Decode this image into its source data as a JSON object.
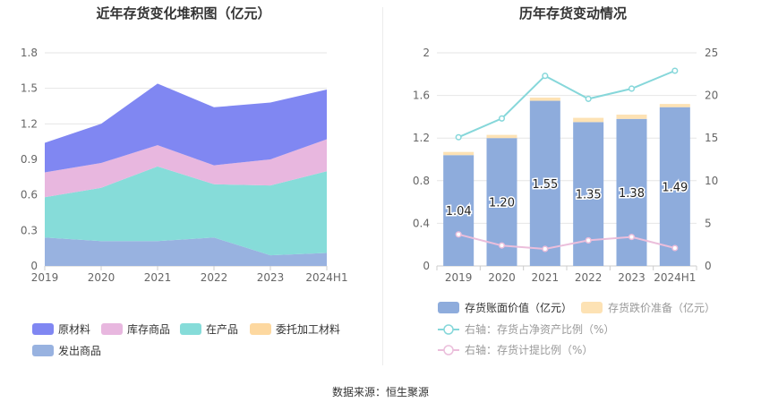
{
  "source_text": "数据来源：恒生聚源",
  "chart_data": [
    {
      "type": "area",
      "stacked": true,
      "title": "近年存货变化堆积图（亿元）",
      "categories": [
        "2019",
        "2020",
        "2021",
        "2022",
        "2023",
        "2024H1"
      ],
      "ylim": [
        0,
        1.8
      ],
      "yticks": [
        "0",
        "0.3",
        "0.6",
        "0.9",
        "1.2",
        "1.5",
        "1.8"
      ],
      "grid": true,
      "legend_position": "bottom-left",
      "series": [
        {
          "name": "原材料",
          "color": "#8087f2",
          "values": [
            0.25,
            0.33,
            0.52,
            0.49,
            0.48,
            0.42
          ]
        },
        {
          "name": "库存商品",
          "color": "#e8b7df",
          "values": [
            0.21,
            0.21,
            0.18,
            0.16,
            0.22,
            0.27
          ]
        },
        {
          "name": "在产品",
          "color": "#86dcd9",
          "values": [
            0.34,
            0.45,
            0.63,
            0.45,
            0.59,
            0.69
          ]
        },
        {
          "name": "委托加工材料",
          "color": "#fdd8a0",
          "values": [
            0.0,
            0.0,
            0.0,
            0.0,
            0.0,
            0.0
          ]
        },
        {
          "name": "发出商品",
          "color": "#98b2e0",
          "values": [
            0.24,
            0.21,
            0.21,
            0.24,
            0.09,
            0.11
          ]
        }
      ]
    },
    {
      "type": "bar",
      "title": "历年存货变动情况",
      "categories": [
        "2019",
        "2020",
        "2021",
        "2022",
        "2023",
        "2024H1"
      ],
      "ylim": [
        0,
        2
      ],
      "yticks": [
        "0",
        "0.4",
        "0.8",
        "1.2",
        "1.6",
        "2"
      ],
      "y2lim": [
        0,
        25
      ],
      "y2ticks": [
        "0",
        "5",
        "10",
        "15",
        "20",
        "25"
      ],
      "grid": true,
      "legend_position": "bottom-left",
      "series": [
        {
          "name": "存货账面价值（亿元）",
          "kind": "bar",
          "axis": "left",
          "color": "#8eacdc",
          "values": [
            1.04,
            1.2,
            1.55,
            1.35,
            1.38,
            1.49
          ],
          "labels": [
            "1.04",
            "1.20",
            "1.55",
            "1.35",
            "1.38",
            "1.49"
          ]
        },
        {
          "name": "存货跌价准备（亿元）",
          "kind": "bar",
          "axis": "left",
          "color": "#fde2b4",
          "values": [
            0.03,
            0.03,
            0.03,
            0.04,
            0.04,
            0.03
          ]
        },
        {
          "name": "右轴：存货占净资产比例（%）",
          "kind": "line",
          "axis": "right",
          "color": "#86d7da",
          "values": [
            15.1,
            17.3,
            22.3,
            19.6,
            20.8,
            22.9
          ]
        },
        {
          "name": "右轴：存货计提比例（%）",
          "kind": "line",
          "axis": "right",
          "color": "#ebbedb",
          "values": [
            3.7,
            2.4,
            2.0,
            3.0,
            3.4,
            2.1
          ]
        }
      ]
    }
  ]
}
